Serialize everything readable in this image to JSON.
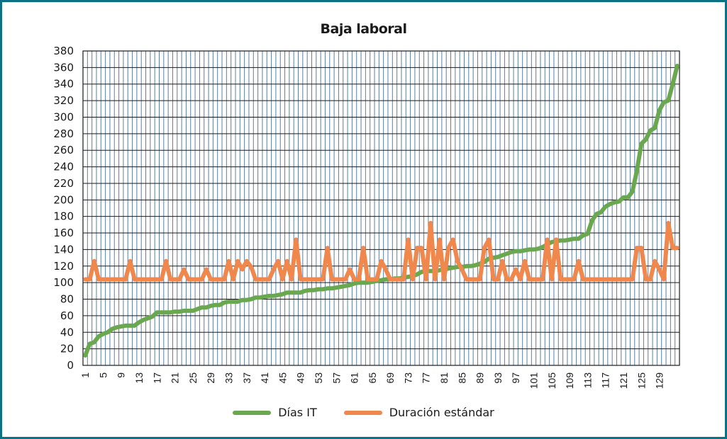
{
  "chart_data": {
    "type": "line",
    "title": "Baja laboral",
    "xlabel": "",
    "ylabel": "",
    "ylim": [
      0,
      380
    ],
    "yticks": [
      0,
      20,
      40,
      60,
      80,
      100,
      120,
      140,
      160,
      180,
      200,
      220,
      240,
      260,
      280,
      300,
      320,
      340,
      360,
      380
    ],
    "x_tick_labels": [
      "1",
      "5",
      "9",
      "13",
      "17",
      "21",
      "25",
      "29",
      "33",
      "37",
      "41",
      "45",
      "49",
      "53",
      "57",
      "61",
      "65",
      "69",
      "73",
      "77",
      "81",
      "85",
      "89",
      "93",
      "97",
      "101",
      "105",
      "109",
      "113",
      "117",
      "121",
      "125",
      "129"
    ],
    "grid": true,
    "legend_position": "bottom",
    "x": [
      1,
      2,
      3,
      4,
      5,
      6,
      7,
      8,
      9,
      10,
      11,
      12,
      13,
      14,
      15,
      16,
      17,
      18,
      19,
      20,
      21,
      22,
      23,
      24,
      25,
      26,
      27,
      28,
      29,
      30,
      31,
      32,
      33,
      34,
      35,
      36,
      37,
      38,
      39,
      40,
      41,
      42,
      43,
      44,
      45,
      46,
      47,
      48,
      49,
      50,
      51,
      52,
      53,
      54,
      55,
      56,
      57,
      58,
      59,
      60,
      61,
      62,
      63,
      64,
      65,
      66,
      67,
      68,
      69,
      70,
      71,
      72,
      73,
      74,
      75,
      76,
      77,
      78,
      79,
      80,
      81,
      82,
      83,
      84,
      85,
      86,
      87,
      88,
      89,
      90,
      91,
      92,
      93,
      94,
      95,
      96,
      97,
      98,
      99,
      100,
      101,
      102,
      103,
      104,
      105,
      106,
      107,
      108,
      109,
      110,
      111,
      112,
      113,
      114,
      115,
      116,
      117,
      118,
      119,
      120,
      121,
      122,
      123,
      124,
      125,
      126,
      127,
      128,
      129,
      130,
      131,
      132,
      133
    ],
    "series": [
      {
        "name": "Días IT",
        "color": "#6aa84f",
        "values": [
          12,
          26,
          28,
          35,
          38,
          40,
          44,
          46,
          47,
          48,
          48,
          48,
          52,
          55,
          57,
          59,
          64,
          64,
          64,
          64,
          65,
          65,
          66,
          66,
          66,
          68,
          70,
          70,
          72,
          73,
          73,
          76,
          77,
          77,
          77,
          79,
          79,
          80,
          82,
          82,
          83,
          84,
          84,
          85,
          86,
          88,
          88,
          88,
          88,
          90,
          91,
          91,
          92,
          92,
          93,
          93,
          94,
          95,
          96,
          97,
          99,
          100,
          100,
          100,
          101,
          102,
          103,
          104,
          104,
          105,
          105,
          106,
          107,
          108,
          110,
          113,
          114,
          114,
          114,
          115,
          116,
          117,
          118,
          119,
          119,
          120,
          120,
          121,
          123,
          125,
          129,
          130,
          131,
          133,
          135,
          137,
          138,
          138,
          139,
          140,
          140,
          141,
          143,
          146,
          149,
          150,
          151,
          151,
          152,
          153,
          153,
          157,
          159,
          175,
          183,
          185,
          192,
          195,
          197,
          198,
          203,
          203,
          210,
          235,
          268,
          273,
          284,
          287,
          308,
          318,
          320,
          340,
          362
        ]
      },
      {
        "name": "Duración estándar",
        "color": "#f0884d",
        "values": [
          104,
          104,
          126,
          104,
          104,
          104,
          104,
          104,
          104,
          104,
          126,
          104,
          104,
          104,
          104,
          104,
          104,
          104,
          126,
          104,
          104,
          104,
          116,
          104,
          104,
          104,
          104,
          116,
          104,
          104,
          104,
          104,
          126,
          104,
          126,
          116,
          126,
          119,
          104,
          104,
          104,
          104,
          116,
          126,
          104,
          126,
          104,
          152,
          104,
          104,
          104,
          104,
          104,
          104,
          142,
          104,
          104,
          104,
          104,
          116,
          104,
          104,
          142,
          104,
          104,
          104,
          126,
          116,
          104,
          104,
          104,
          104,
          152,
          104,
          142,
          142,
          104,
          172,
          104,
          152,
          104,
          142,
          152,
          126,
          116,
          104,
          104,
          104,
          104,
          142,
          152,
          104,
          104,
          126,
          104,
          104,
          116,
          104,
          126,
          104,
          104,
          104,
          104,
          152,
          104,
          152,
          104,
          104,
          104,
          104,
          126,
          104,
          104,
          104,
          104,
          104,
          104,
          104,
          104,
          104,
          104,
          104,
          104,
          142,
          142,
          104,
          104,
          126,
          116,
          104,
          172,
          142,
          142
        ]
      }
    ]
  },
  "legend": {
    "items": [
      {
        "label": "Días IT",
        "color": "#6aa84f"
      },
      {
        "label": "Duración estándar",
        "color": "#f0884d"
      }
    ]
  },
  "colors": {
    "frame": "#0b7285",
    "minor_grid": "#5b7fa3",
    "major_grid": "#1a1a1a"
  }
}
